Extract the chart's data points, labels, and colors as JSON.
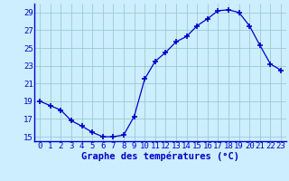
{
  "hours": [
    0,
    1,
    2,
    3,
    4,
    5,
    6,
    7,
    8,
    9,
    10,
    11,
    12,
    13,
    14,
    15,
    16,
    17,
    18,
    19,
    20,
    21,
    22,
    23
  ],
  "temps": [
    19.0,
    18.5,
    18.0,
    16.8,
    16.2,
    15.5,
    15.0,
    15.0,
    15.2,
    17.3,
    21.5,
    23.5,
    24.5,
    25.7,
    26.3,
    27.5,
    28.3,
    29.2,
    29.3,
    29.0,
    27.5,
    25.3,
    23.2,
    22.5
  ],
  "xlabel": "Graphe des températures (°C)",
  "ylim": [
    14.5,
    30.0
  ],
  "xlim": [
    -0.5,
    23.5
  ],
  "yticks": [
    15,
    17,
    19,
    21,
    23,
    25,
    27,
    29
  ],
  "xticks": [
    0,
    1,
    2,
    3,
    4,
    5,
    6,
    7,
    8,
    9,
    10,
    11,
    12,
    13,
    14,
    15,
    16,
    17,
    18,
    19,
    20,
    21,
    22,
    23
  ],
  "line_color": "#0000cc",
  "marker": "+",
  "bg_color": "#cceeff",
  "grid_color": "#99cccc",
  "xlabel_color": "#0000cc",
  "xlabel_fontsize": 7.5,
  "tick_fontsize": 6.5,
  "tick_color": "#0000cc",
  "spine_color": "#0000cc"
}
